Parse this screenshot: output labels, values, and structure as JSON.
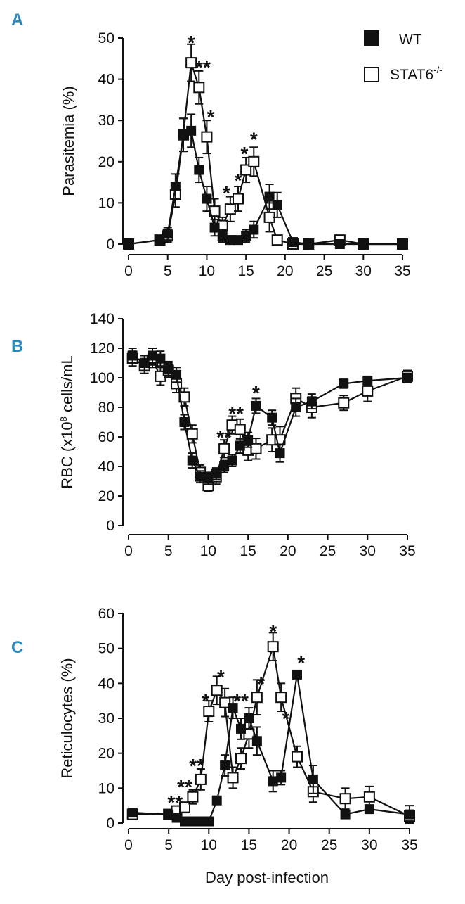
{
  "colors": {
    "panel_letter": "#2a8bbd",
    "ink": "#111111",
    "open_fill": "#ffffff"
  },
  "legend": [
    {
      "name": "WT",
      "marker": "filled-square"
    },
    {
      "name": "STAT6",
      "superscript": "-/-",
      "marker": "open-square"
    }
  ],
  "xlabel": "Day post-infection",
  "chart_data": [
    {
      "panel": "A",
      "type": "line",
      "ylabel": "Parasitemia (%)",
      "ylim": [
        0,
        50
      ],
      "yticks": [
        0,
        10,
        20,
        30,
        40,
        50
      ],
      "xlim": [
        0,
        35
      ],
      "xticks": [
        0,
        5,
        10,
        15,
        20,
        25,
        30,
        35
      ],
      "series": [
        {
          "name": "WT",
          "marker": "filled",
          "x": [
            0,
            4,
            5,
            6,
            7,
            8,
            9,
            10,
            11,
            12,
            13,
            14,
            15,
            16,
            18,
            19,
            21,
            23,
            27,
            30,
            35
          ],
          "y": [
            0,
            1,
            2.5,
            14,
            26.5,
            27.5,
            18,
            11,
            4,
            2,
            1,
            1,
            2,
            3.5,
            11.5,
            9.5,
            0.5,
            0,
            0,
            0,
            0
          ],
          "err": [
            0,
            1,
            1.5,
            3,
            4,
            4,
            3,
            3,
            2,
            1.5,
            1,
            1,
            1.5,
            2,
            3,
            3,
            0.5,
            0,
            0,
            0,
            0
          ]
        },
        {
          "name": "STAT6-/-",
          "marker": "open",
          "x": [
            0,
            4,
            5,
            6,
            7,
            8,
            9,
            10,
            11,
            12,
            13,
            14,
            15,
            16,
            18,
            19,
            21,
            23,
            27,
            30,
            35
          ],
          "y": [
            0,
            1,
            2,
            12,
            26.5,
            44,
            38,
            26,
            8,
            4.5,
            8.5,
            11,
            18,
            20,
            6.5,
            1,
            0,
            0,
            1,
            0,
            0
          ],
          "err": [
            0,
            1,
            1.5,
            3,
            4,
            4.5,
            4,
            4,
            3,
            2,
            3,
            3,
            3,
            3.5,
            3.5,
            1,
            0,
            0,
            0.5,
            0,
            0
          ]
        }
      ],
      "annotations": [
        {
          "x": 8,
          "y": 49,
          "text": "*"
        },
        {
          "x": 9.5,
          "y": 43,
          "text": "**"
        },
        {
          "x": 10.5,
          "y": 31,
          "text": "*"
        },
        {
          "x": 12.5,
          "y": 12.5,
          "text": "*"
        },
        {
          "x": 14,
          "y": 15.5,
          "text": "*"
        },
        {
          "x": 14.8,
          "y": 22,
          "text": "*"
        },
        {
          "x": 16,
          "y": 25.5,
          "text": "*"
        }
      ]
    },
    {
      "panel": "B",
      "type": "line",
      "ylabel": "RBC (x10",
      "ylabel_sup": "8",
      "ylabel_tail": " cells/mL",
      "ylim": [
        0,
        140
      ],
      "yticks": [
        0,
        20,
        40,
        60,
        80,
        100,
        120,
        140
      ],
      "xlim": [
        0,
        35
      ],
      "xticks": [
        0,
        5,
        10,
        15,
        20,
        25,
        30,
        35
      ],
      "series": [
        {
          "name": "WT",
          "marker": "filled",
          "x": [
            0.5,
            2,
            3,
            4,
            5,
            6,
            7,
            8,
            9,
            10,
            11,
            12,
            13,
            14,
            15,
            16,
            18,
            19,
            21,
            23,
            27,
            30,
            35
          ],
          "y": [
            115,
            110,
            115,
            113,
            106,
            102,
            70,
            44,
            33,
            32,
            35,
            40,
            44,
            54,
            58,
            81,
            73,
            49,
            80,
            84,
            96,
            98,
            100
          ],
          "err": [
            5,
            5,
            5,
            5,
            5,
            5,
            5,
            5,
            4,
            4,
            4,
            4,
            4,
            5,
            5,
            5,
            5,
            6,
            6,
            5,
            3,
            3,
            3
          ]
        },
        {
          "name": "STAT6-/-",
          "marker": "open",
          "x": [
            0.5,
            2,
            3,
            4,
            5,
            6,
            7,
            8,
            9,
            10,
            11,
            12,
            13,
            14,
            15,
            16,
            18,
            19,
            21,
            23,
            27,
            30,
            35
          ],
          "y": [
            113,
            108,
            112,
            101,
            105,
            96,
            87,
            62,
            36,
            27,
            33,
            52,
            68,
            65,
            51,
            52,
            58,
            58,
            86,
            80,
            83,
            91,
            101
          ],
          "err": [
            5,
            5,
            5,
            6,
            5,
            6,
            6,
            6,
            5,
            4,
            5,
            6,
            6,
            7,
            7,
            7,
            8,
            9,
            7,
            7,
            5,
            7,
            4
          ]
        }
      ],
      "annotations": [
        {
          "x": 12,
          "y": 60,
          "text": "**"
        },
        {
          "x": 13.5,
          "y": 76,
          "text": "**"
        },
        {
          "x": 16,
          "y": 90,
          "text": "*"
        }
      ]
    },
    {
      "panel": "C",
      "type": "line",
      "ylabel": "Reticulocytes (%)",
      "ylim": [
        0,
        60
      ],
      "yticks": [
        0,
        10,
        20,
        30,
        40,
        50,
        60
      ],
      "xlim": [
        0,
        35
      ],
      "xticks": [
        0,
        5,
        10,
        15,
        20,
        25,
        30,
        35
      ],
      "series": [
        {
          "name": "WT",
          "marker": "filled",
          "x": [
            0.5,
            5,
            6,
            7,
            8,
            9,
            10,
            11,
            12,
            13,
            14,
            15,
            16,
            18,
            19,
            21,
            23,
            27,
            30,
            35
          ],
          "y": [
            3,
            2.5,
            1.5,
            0.5,
            0.5,
            0.5,
            0.5,
            6.5,
            16.5,
            33,
            27,
            30,
            23.5,
            12,
            13,
            42.5,
            12.5,
            2.5,
            4,
            2.5
          ],
          "err": [
            1,
            1,
            0.5,
            0.5,
            0.5,
            0.5,
            0.5,
            1,
            3,
            3,
            3,
            3,
            4,
            3,
            2,
            1,
            4,
            1,
            1,
            1
          ]
        },
        {
          "name": "STAT6-/-",
          "marker": "open",
          "x": [
            0.5,
            5,
            6,
            7,
            8,
            9,
            10,
            11,
            12,
            13,
            14,
            15,
            16,
            18,
            19,
            21,
            23,
            27,
            30,
            35
          ],
          "y": [
            2.5,
            2.5,
            3.5,
            4.5,
            7.5,
            12.5,
            32,
            38,
            34.5,
            13,
            18.5,
            25.5,
            36,
            50.5,
            36,
            19,
            9,
            7,
            7.5,
            2
          ],
          "err": [
            1,
            1,
            1,
            1.5,
            2,
            3,
            3,
            4,
            4,
            3,
            3,
            4,
            5,
            4,
            4,
            3,
            3,
            3,
            3,
            3
          ]
        }
      ],
      "annotations": [
        {
          "x": 5.8,
          "y": 6,
          "text": "**"
        },
        {
          "x": 7,
          "y": 10.5,
          "text": "**"
        },
        {
          "x": 8.5,
          "y": 16.5,
          "text": "**"
        },
        {
          "x": 9.6,
          "y": 35,
          "text": "*"
        },
        {
          "x": 11.5,
          "y": 42,
          "text": "*"
        },
        {
          "x": 14,
          "y": 35,
          "text": "**"
        },
        {
          "x": 16.5,
          "y": 40,
          "text": "*"
        },
        {
          "x": 18,
          "y": 55,
          "text": "*"
        },
        {
          "x": 19.6,
          "y": 30,
          "text": "*"
        },
        {
          "x": 21.5,
          "y": 46,
          "text": "*"
        }
      ]
    }
  ]
}
